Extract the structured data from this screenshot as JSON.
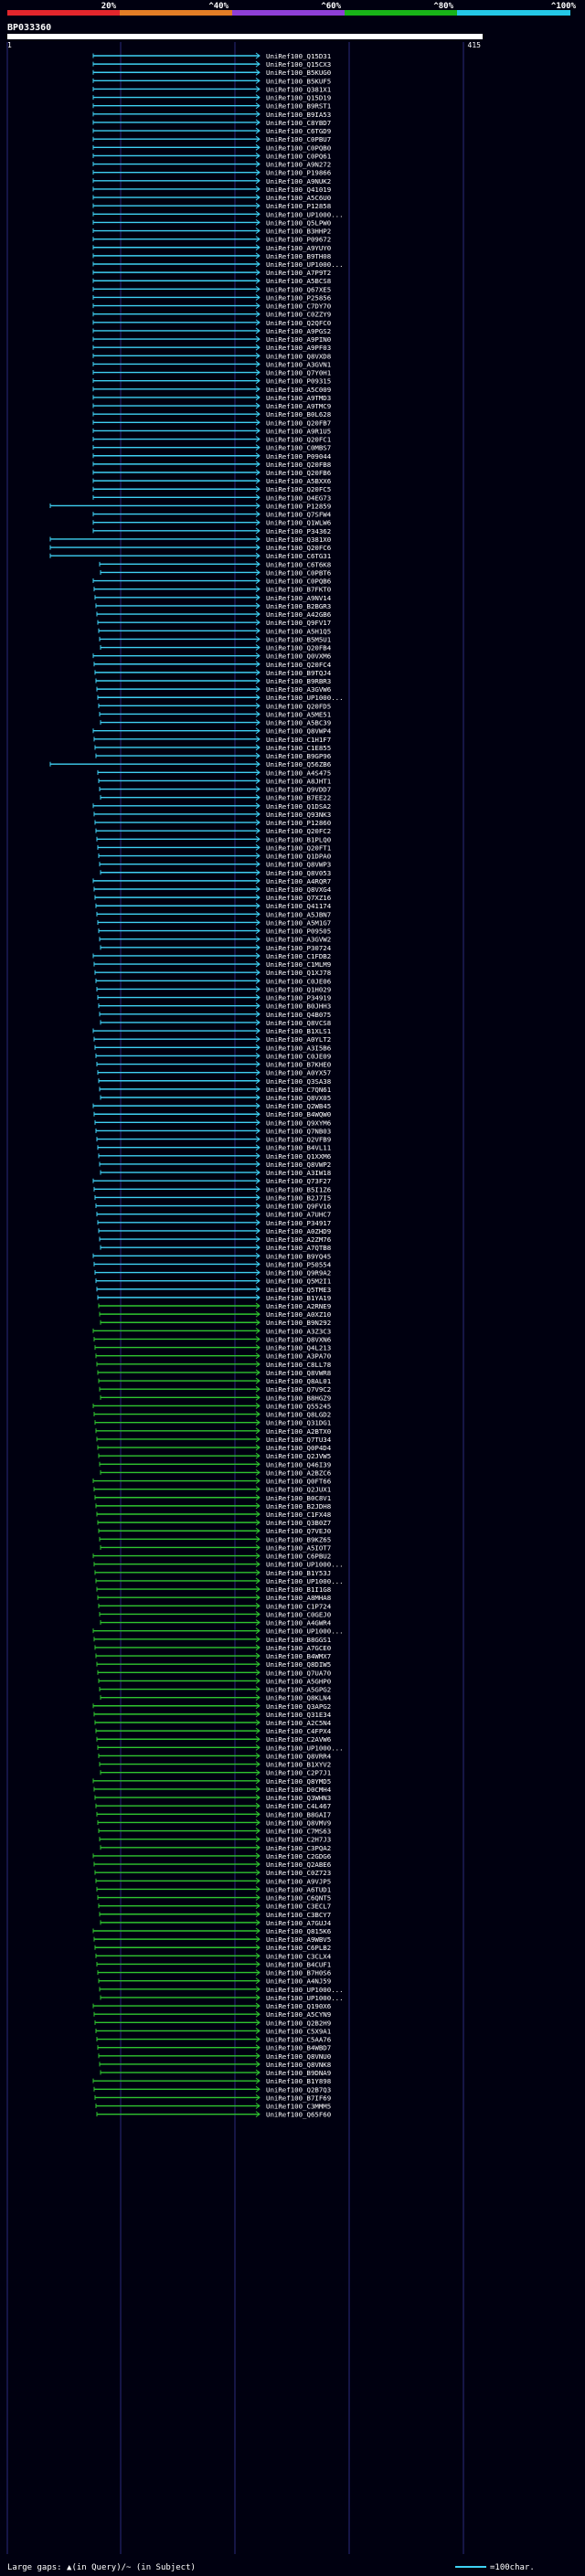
{
  "header": {
    "scale_labels": [
      "20%",
      "^40%",
      "^60%",
      "^80%",
      "^100%"
    ],
    "scale_colors": [
      "#e3262c",
      "#e37d26",
      "#8e3fd6",
      "#18b318",
      "#24c7e6"
    ],
    "query_id": "BP033360",
    "ruler_start": "1",
    "ruler_end": "415"
  },
  "colors": {
    "cyan": "#3fd1f3",
    "green": "#2fc52f",
    "background": "#000010"
  },
  "hits": [
    "UniRef100_Q15D31",
    "UniRef100_Q15CX3",
    "UniRef100_B5KUG0",
    "UniRef100_B5KUF5",
    "UniRef100_Q381X1",
    "UniRef100_Q15D19",
    "UniRef100_B9RST1",
    "UniRef100_B9IA53",
    "UniRef100_C8YBD7",
    "UniRef100_C6TGD9",
    "UniRef100_C0PBU7",
    "UniRef100_C0PQB0",
    "UniRef100_C0PQ61",
    "UniRef100_A9N272",
    "UniRef100_P19866",
    "UniRef100_A9NUK2",
    "UniRef100_Q41019",
    "UniRef100_A5C6U0",
    "UniRef100_P12858",
    "UniRef100_UP1000...",
    "UniRef100_Q5LPW0",
    "UniRef100_B3HHP2",
    "UniRef100_P09672",
    "UniRef100_A9YUY0",
    "UniRef100_B9TH08",
    "UniRef100_UP1000...",
    "UniRef100_A7P9T2",
    "UniRef100_A5BCS8",
    "UniRef100_Q67XE5",
    "UniRef100_P25856",
    "UniRef100_C7DY70",
    "UniRef100_C0ZZY9",
    "UniRef100_Q2QFC0",
    "UniRef100_A9PGS2",
    "UniRef100_A9PIN0",
    "UniRef100_A9PF03",
    "UniRef100_Q8VXD8",
    "UniRef100_A3GVN1",
    "UniRef100_Q7Y0H1",
    "UniRef100_P09315",
    "UniRef100_A5C009",
    "UniRef100_A9TMD3",
    "UniRef100_A9TMC9",
    "UniRef100_B0L628",
    "UniRef100_Q20FB7",
    "UniRef100_A9R1U5",
    "UniRef100_Q20FC1",
    "UniRef100_C0MBS7",
    "UniRef100_P09044",
    "UniRef100_Q20FB8",
    "UniRef100_Q20FB6",
    "UniRef100_A5BXX6",
    "UniRef100_Q20FC5",
    "UniRef100_O4EG73",
    "UniRef100_P12859",
    "UniRef100_Q7SFW4",
    "UniRef100_Q1WLW6",
    "UniRef100_P34362",
    "UniRef100_Q381X0",
    "UniRef100_Q20FC6",
    "UniRef100_C6TG31",
    "UniRef100_C6T6K8",
    "UniRef100_C0PBT6",
    "UniRef100_C0PQB6",
    "UniRef100_B7FKT0",
    "UniRef100_A9NV14",
    "UniRef100_B2BGR3",
    "UniRef100_A42GB6",
    "UniRef100_Q9FV17",
    "UniRef100_A5H1Q5",
    "UniRef100_B5M5U1",
    "UniRef100_Q20FB4",
    "UniRef100_Q0VXM6",
    "UniRef100_Q20FC4",
    "UniRef100_B9TQJ4",
    "UniRef100_B9RBR3",
    "UniRef100_A3GVW6",
    "UniRef100_UP1000...",
    "UniRef100_Q20FD5",
    "UniRef100_A5ME51",
    "UniRef100_A5BC39",
    "UniRef100_Q8VWP4",
    "UniRef100_C1H1F7",
    "UniRef100_C1E855",
    "UniRef100_B9GP96",
    "UniRef100_Q56ZB6",
    "UniRef100_A4S475",
    "UniRef100_A8JHT1",
    "UniRef100_Q9VDD7",
    "UniRef100_B7EE22",
    "UniRef100_Q1DSA2",
    "UniRef100_Q93NK3",
    "UniRef100_P12860",
    "UniRef100_Q20FC2",
    "UniRef100_B1PLQ0",
    "UniRef100_Q20FT1",
    "UniRef100_Q1DPA0",
    "UniRef100_Q8VWP3",
    "UniRef100_Q8V053",
    "UniRef100_A4RQR7",
    "UniRef100_Q8VXG4",
    "UniRef100_Q7XZ16",
    "UniRef100_Q41174",
    "UniRef100_A5JBN7",
    "UniRef100_A5M1G7",
    "UniRef100_P09505",
    "UniRef100_A3GVW2",
    "UniRef100_P30724",
    "UniRef100_C1FDB2",
    "UniRef100_C1MLM9",
    "UniRef100_Q1XJ78",
    "UniRef100_C0JE06",
    "UniRef100_Q1H029",
    "UniRef100_P34919",
    "UniRef100_B0JHH3",
    "UniRef100_Q4B075",
    "UniRef100_Q8VCS8",
    "UniRef100_B1XLS1",
    "UniRef100_A0YLT2",
    "UniRef100_A3I5B6",
    "UniRef100_C0JE09",
    "UniRef100_B7KHE0",
    "UniRef100_A0YX57",
    "UniRef100_Q3SA38",
    "UniRef100_C7QN61",
    "UniRef100_Q8VX05",
    "UniRef100_Q2WB45",
    "UniRef100_B4WQW0",
    "UniRef100_Q9XYM6",
    "UniRef100_Q7NB03",
    "UniRef100_Q2VFB9",
    "UniRef100_B4VL11",
    "UniRef100_Q1XXM6",
    "UniRef100_Q8VWP2",
    "UniRef100_A3IW18",
    "UniRef100_Q73F27",
    "UniRef100_B5I1Z6",
    "UniRef100_B2J7I5",
    "UniRef100_Q9FV16",
    "UniRef100_A7UHC7",
    "UniRef100_P34917",
    "UniRef100_A0ZHD9",
    "UniRef100_A2ZM76",
    "UniRef100_A7QTB8",
    "UniRef100_B9YQ45",
    "UniRef100_P50554",
    "UniRef100_Q9R9A2",
    "UniRef100_Q5M2I1",
    "UniRef100_Q5TME3",
    "UniRef100_B1YA19",
    "UniRef100_A2RNE9",
    "UniRef100_A0XZ10",
    "UniRef100_B9N292",
    "UniRef100_A3Z3C3",
    "UniRef100_Q8VXN6",
    "UniRef100_Q4L213",
    "UniRef100_A3PA70",
    "UniRef100_C8LL78",
    "UniRef100_Q8VWR8",
    "UniRef100_Q8AL01",
    "UniRef100_Q7V9C2",
    "UniRef100_B8HGZ9",
    "UniRef100_Q55245",
    "UniRef100_Q8LGD2",
    "UniRef100_Q31DG1",
    "UniRef100_A2BTX0",
    "UniRef100_Q7TU34",
    "UniRef100_Q0P4D4",
    "UniRef100_Q2JVW5",
    "UniRef100_Q46I39",
    "UniRef100_A2BZC6",
    "UniRef100_Q0FT66",
    "UniRef100_Q2JUX1",
    "UniRef100_B0C8V1",
    "UniRef100_B2JDH8",
    "UniRef100_C1FX48",
    "UniRef100_Q3B0Z7",
    "UniRef100_Q7VEJ0",
    "UniRef100_B9KZ65",
    "UniRef100_A5IOT7",
    "UniRef100_C6PBU2",
    "UniRef100_UP1000...",
    "UniRef100_B1Y53J",
    "UniRef100_UP1000...",
    "UniRef100_B1I1G8",
    "UniRef100_A8MHA8",
    "UniRef100_C1P724",
    "UniRef100_C0GEJ0",
    "UniRef100_A4GWR4",
    "UniRef100_UP1000...",
    "UniRef100_B8GGS1",
    "UniRef100_A7GCE0",
    "UniRef100_B4WMX7",
    "UniRef100_Q8DIW5",
    "UniRef100_Q7UA70",
    "UniRef100_A5GHP0",
    "UniRef100_A5GPG2",
    "UniRef100_Q8KLN4",
    "UniRef100_Q3APG2",
    "UniRef100_Q31E34",
    "UniRef100_A2C5N4",
    "UniRef100_C4FPX4",
    "UniRef100_C2AVW6",
    "UniRef100_UP1000...",
    "UniRef100_Q8VRR4",
    "UniRef100_B1XYV2",
    "UniRef100_C2P7J1",
    "UniRef100_Q8YMD5",
    "UniRef100_D0CMH4",
    "UniRef100_Q3WHN3",
    "UniRef100_C4L467",
    "UniRef100_B8GAI7",
    "UniRef100_Q8VMV9",
    "UniRef100_C7MS63",
    "UniRef100_C2H7J3",
    "UniRef100_C3PQA2",
    "UniRef100_C2GDG6",
    "UniRef100_Q2ABE6",
    "UniRef100_C0Z723",
    "UniRef100_A9VJP5",
    "UniRef100_A6TUD1",
    "UniRef100_C6QNT5",
    "UniRef100_C3ECL7",
    "UniRef100_C3BCY7",
    "UniRef100_A7GUJ4",
    "UniRef100_Q815K6",
    "UniRef100_A9WBV5",
    "UniRef100_C6PLB2",
    "UniRef100_C3CLX4",
    "UniRef100_B4CUF1",
    "UniRef100_B7H0S6",
    "UniRef100_A4NJ59",
    "UniRef100_UP1000...",
    "UniRef100_UP1000...",
    "UniRef100_Q190X6",
    "UniRef100_A5CYN9",
    "UniRef100_Q2B2H9",
    "UniRef100_C5X9A1",
    "UniRef100_C5AA76",
    "UniRef100_B4WBD7",
    "UniRef100_Q8VNU0",
    "UniRef100_Q8VNK8",
    "UniRef100_B9DNA9",
    "UniRef100_B1Y898",
    "UniRef100_Q2B7Q3",
    "UniRef100_B7IF69",
    "UniRef100_C3MMM5",
    "UniRef100_Q65F60"
  ],
  "footer": {
    "legend_text": "Large gaps: ▲(in Query)/~ (in Subject)",
    "scale_text": "=100char."
  }
}
